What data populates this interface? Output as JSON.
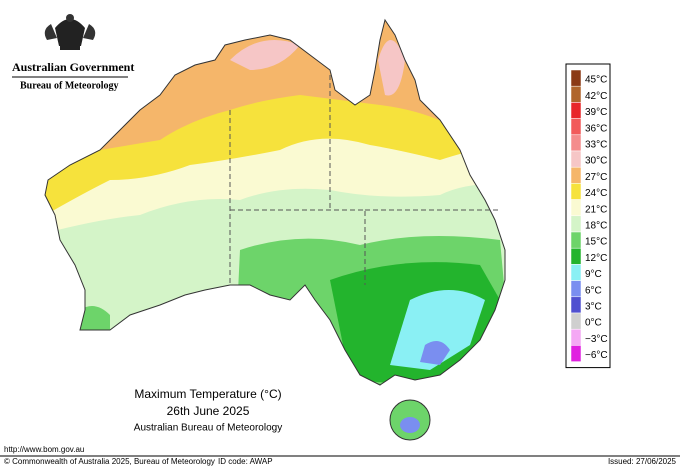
{
  "header": {
    "agency": "Australian Government",
    "bureau": "Bureau of Meteorology"
  },
  "map": {
    "title": "Maximum Temperature (°C)",
    "date": "26th June 2025",
    "source": "Australian Bureau of Meteorology"
  },
  "legend": {
    "items": [
      {
        "label": "45°C",
        "color": "#8b3a16"
      },
      {
        "label": "42°C",
        "color": "#b0652c"
      },
      {
        "label": "39°C",
        "color": "#e8262a"
      },
      {
        "label": "36°C",
        "color": "#f25a5a"
      },
      {
        "label": "33°C",
        "color": "#f48c8c"
      },
      {
        "label": "30°C",
        "color": "#f6c6c6"
      },
      {
        "label": "27°C",
        "color": "#f5b66a"
      },
      {
        "label": "24°C",
        "color": "#f6e23c"
      },
      {
        "label": "21°C",
        "color": "#fafad2"
      },
      {
        "label": "18°C",
        "color": "#d4f4c8"
      },
      {
        "label": "15°C",
        "color": "#6dd46a"
      },
      {
        "label": "12°C",
        "color": "#23b42d"
      },
      {
        "label": "9°C",
        "color": "#8af0f4"
      },
      {
        "label": "6°C",
        "color": "#7a8ef0"
      },
      {
        "label": "3°C",
        "color": "#5050d0"
      },
      {
        "label": "0°C",
        "color": "#cfcfcf"
      },
      {
        "label": "−3°C",
        "color": "#f4a8f4"
      },
      {
        "label": "−6°C",
        "color": "#e020e0"
      }
    ]
  },
  "footer": {
    "url": "http://www.bom.gov.au",
    "copyright": "© Commonwealth of Australia 2025, Bureau of Meteorology",
    "id_code": "ID code: AWAP",
    "issued": "Issued: 27/06/2025"
  }
}
